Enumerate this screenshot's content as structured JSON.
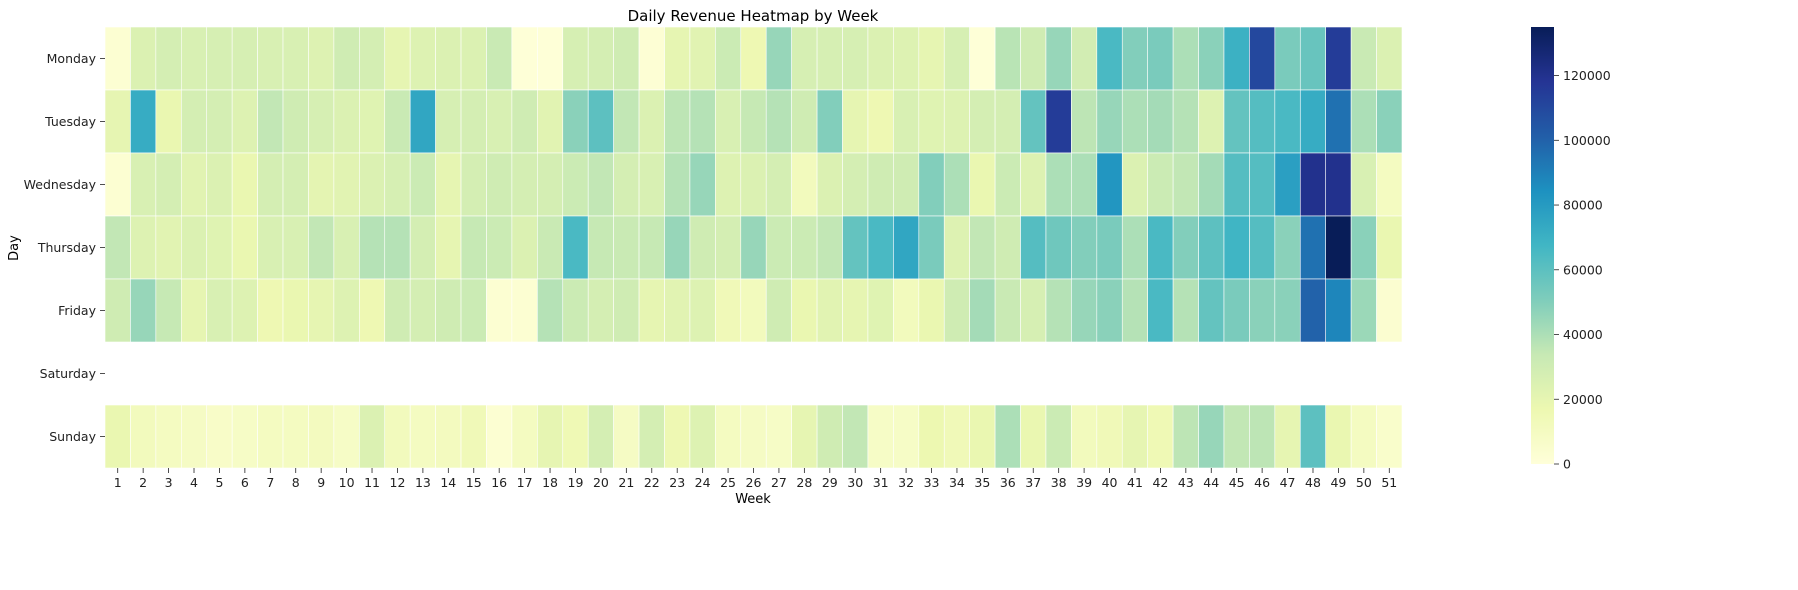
{
  "chart_data": {
    "type": "heatmap",
    "title": "Daily Revenue Heatmap by Week",
    "xlabel": "Week",
    "ylabel": "Day",
    "x_categories": [
      "1",
      "2",
      "3",
      "4",
      "5",
      "6",
      "7",
      "8",
      "9",
      "10",
      "11",
      "12",
      "13",
      "14",
      "15",
      "16",
      "17",
      "18",
      "19",
      "20",
      "21",
      "22",
      "23",
      "24",
      "25",
      "26",
      "27",
      "28",
      "29",
      "30",
      "31",
      "32",
      "33",
      "34",
      "35",
      "36",
      "37",
      "38",
      "39",
      "40",
      "41",
      "42",
      "43",
      "44",
      "45",
      "46",
      "47",
      "48",
      "49",
      "50",
      "51"
    ],
    "y_categories": [
      "Monday",
      "Tuesday",
      "Wednesday",
      "Thursday",
      "Friday",
      "Saturday",
      "Sunday"
    ],
    "colormap": "YlGnBu",
    "color_range": [
      0,
      135000
    ],
    "colorbar_ticks": [
      0,
      20000,
      40000,
      60000,
      80000,
      100000,
      120000
    ],
    "colorbar_tick_labels": [
      "0",
      "20000",
      "40000",
      "60000",
      "80000",
      "100000",
      "120000"
    ],
    "values": [
      [
        3000,
        25000,
        28000,
        26000,
        27000,
        27000,
        26000,
        26000,
        24000,
        30000,
        28000,
        20000,
        24000,
        25000,
        25000,
        33000,
        1000,
        1000,
        27000,
        28000,
        30000,
        2000,
        20000,
        22000,
        32000,
        16000,
        45000,
        27000,
        27000,
        27000,
        25000,
        24000,
        20000,
        27000,
        1000,
        37000,
        30000,
        45000,
        29000,
        65000,
        50000,
        52000,
        40000,
        48000,
        70000,
        110000,
        52000,
        57000,
        115000,
        33000,
        25000
      ],
      [
        20000,
        72000,
        18000,
        28000,
        28000,
        24000,
        35000,
        30000,
        27000,
        25000,
        23000,
        33000,
        75000,
        27000,
        28000,
        26000,
        30000,
        22000,
        48000,
        60000,
        35000,
        25000,
        36000,
        38000,
        26000,
        34000,
        38000,
        30000,
        50000,
        20000,
        16000,
        26000,
        23000,
        24000,
        28000,
        28000,
        58000,
        115000,
        36000,
        45000,
        40000,
        42000,
        38000,
        24000,
        58000,
        62000,
        65000,
        72000,
        95000,
        40000,
        48000
      ],
      [
        3000,
        26000,
        28000,
        22000,
        25000,
        18000,
        28000,
        28000,
        21000,
        22000,
        25000,
        27000,
        32000,
        20000,
        28000,
        30000,
        28000,
        28000,
        32000,
        35000,
        28000,
        26000,
        38000,
        45000,
        24000,
        25000,
        28000,
        12000,
        25000,
        28000,
        30000,
        30000,
        50000,
        40000,
        18000,
        32000,
        24000,
        40000,
        40000,
        82000,
        25000,
        32000,
        35000,
        42000,
        62000,
        62000,
        78000,
        120000,
        120000,
        26000,
        10000
      ],
      [
        35000,
        24000,
        22000,
        25000,
        23000,
        18000,
        26000,
        26000,
        35000,
        26000,
        38000,
        38000,
        28000,
        20000,
        34000,
        32000,
        25000,
        33000,
        65000,
        34000,
        33000,
        34000,
        45000,
        30000,
        28000,
        45000,
        32000,
        32000,
        35000,
        58000,
        65000,
        75000,
        52000,
        24000,
        35000,
        30000,
        62000,
        55000,
        50000,
        52000,
        40000,
        65000,
        50000,
        60000,
        68000,
        62000,
        48000,
        95000,
        135000,
        48000,
        18000
      ],
      [
        30000,
        45000,
        34000,
        20000,
        26000,
        24000,
        16000,
        18000,
        20000,
        24000,
        16000,
        30000,
        28000,
        30000,
        32000,
        3000,
        3000,
        38000,
        32000,
        28000,
        30000,
        20000,
        22000,
        24000,
        14000,
        12000,
        30000,
        18000,
        22000,
        20000,
        23000,
        12000,
        18000,
        30000,
        42000,
        33000,
        27000,
        38000,
        45000,
        48000,
        38000,
        65000,
        38000,
        58000,
        52000,
        48000,
        48000,
        100000,
        88000,
        44000,
        4000
      ],
      [
        null,
        null,
        null,
        null,
        null,
        null,
        null,
        null,
        null,
        null,
        null,
        null,
        null,
        null,
        null,
        null,
        null,
        null,
        null,
        null,
        null,
        null,
        null,
        null,
        null,
        null,
        null,
        null,
        null,
        null,
        null,
        null,
        null,
        null,
        null,
        null,
        null,
        null,
        null,
        null,
        null,
        null,
        null,
        null,
        null,
        null,
        null,
        null,
        null,
        null,
        null
      ],
      [
        18000,
        12000,
        10000,
        9000,
        7000,
        8000,
        10000,
        10000,
        11000,
        8000,
        25000,
        12000,
        10000,
        11000,
        14000,
        3000,
        10000,
        20000,
        15000,
        28000,
        9000,
        28000,
        16000,
        24000,
        10000,
        9000,
        8000,
        20000,
        30000,
        35000,
        8000,
        8000,
        17000,
        14000,
        18000,
        40000,
        18000,
        32000,
        12000,
        14000,
        20000,
        15000,
        36000,
        45000,
        35000,
        36000,
        20000,
        60000,
        18000,
        10000,
        6000
      ]
    ]
  }
}
